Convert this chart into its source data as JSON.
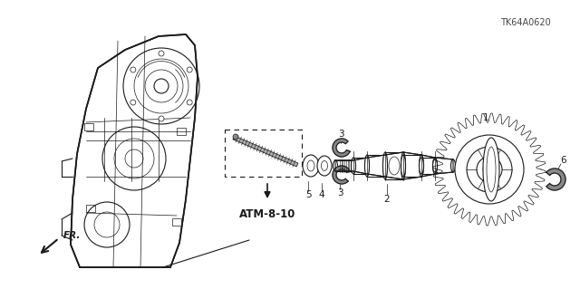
{
  "bg_color": "#ffffff",
  "line_color": "#1a1a1a",
  "fig_w": 6.4,
  "fig_h": 3.19,
  "dpi": 100,
  "atm_label": "ATM-8-10",
  "fr_label": "FR.",
  "diagram_code": "TK64A0620"
}
